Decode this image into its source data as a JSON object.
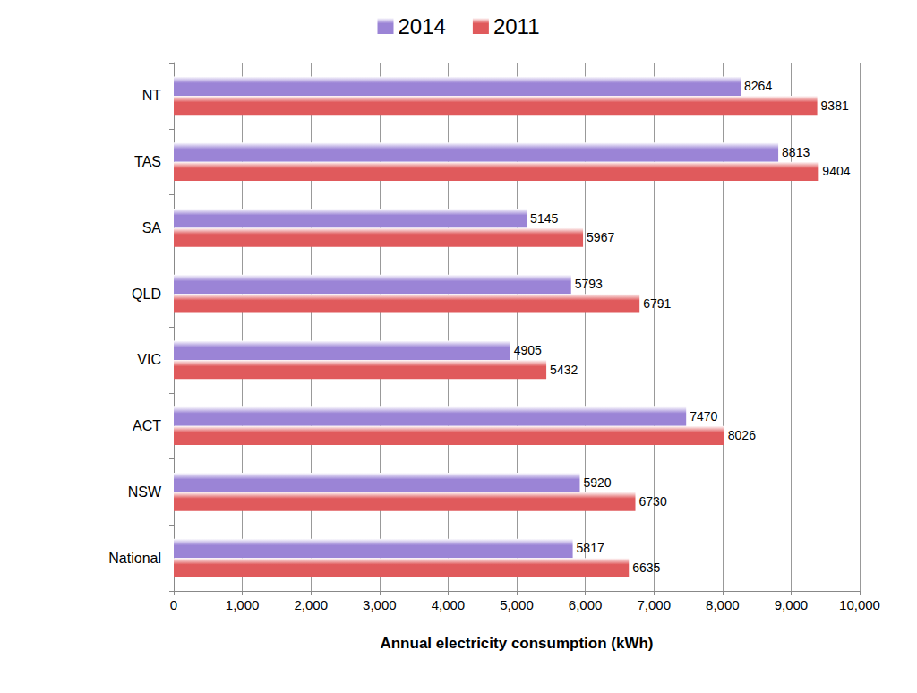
{
  "chart_data": {
    "type": "bar",
    "orientation": "horizontal",
    "categories": [
      "NT",
      "TAS",
      "SA",
      "QLD",
      "VIC",
      "ACT",
      "NSW",
      "National"
    ],
    "series": [
      {
        "name": "2014",
        "color": "#9b84d6",
        "values": [
          8264,
          8813,
          5145,
          5793,
          4905,
          7470,
          5920,
          5817
        ]
      },
      {
        "name": "2011",
        "color": "#e05a5c",
        "values": [
          9381,
          9404,
          5967,
          6791,
          5432,
          8026,
          6730,
          6635
        ]
      }
    ],
    "xlabel": "Annual electricity consumption (kWh)",
    "xlim": [
      0,
      10000
    ],
    "xticks": [
      0,
      {
        "value": 1000,
        "label": "1,000"
      },
      {
        "value": 2000,
        "label": "2,000"
      },
      {
        "value": 3000,
        "label": "3,000"
      },
      {
        "value": 4000,
        "label": "4,000"
      },
      {
        "value": 5000,
        "label": "5,000"
      },
      {
        "value": 6000,
        "label": "6,000"
      },
      {
        "value": 7000,
        "label": "7,000"
      },
      {
        "value": 8000,
        "label": "8,000"
      },
      {
        "value": 9000,
        "label": "9,000"
      },
      {
        "value": 10000,
        "label": "10,000"
      }
    ],
    "grid": true,
    "legend": "top",
    "data_labels": true
  }
}
